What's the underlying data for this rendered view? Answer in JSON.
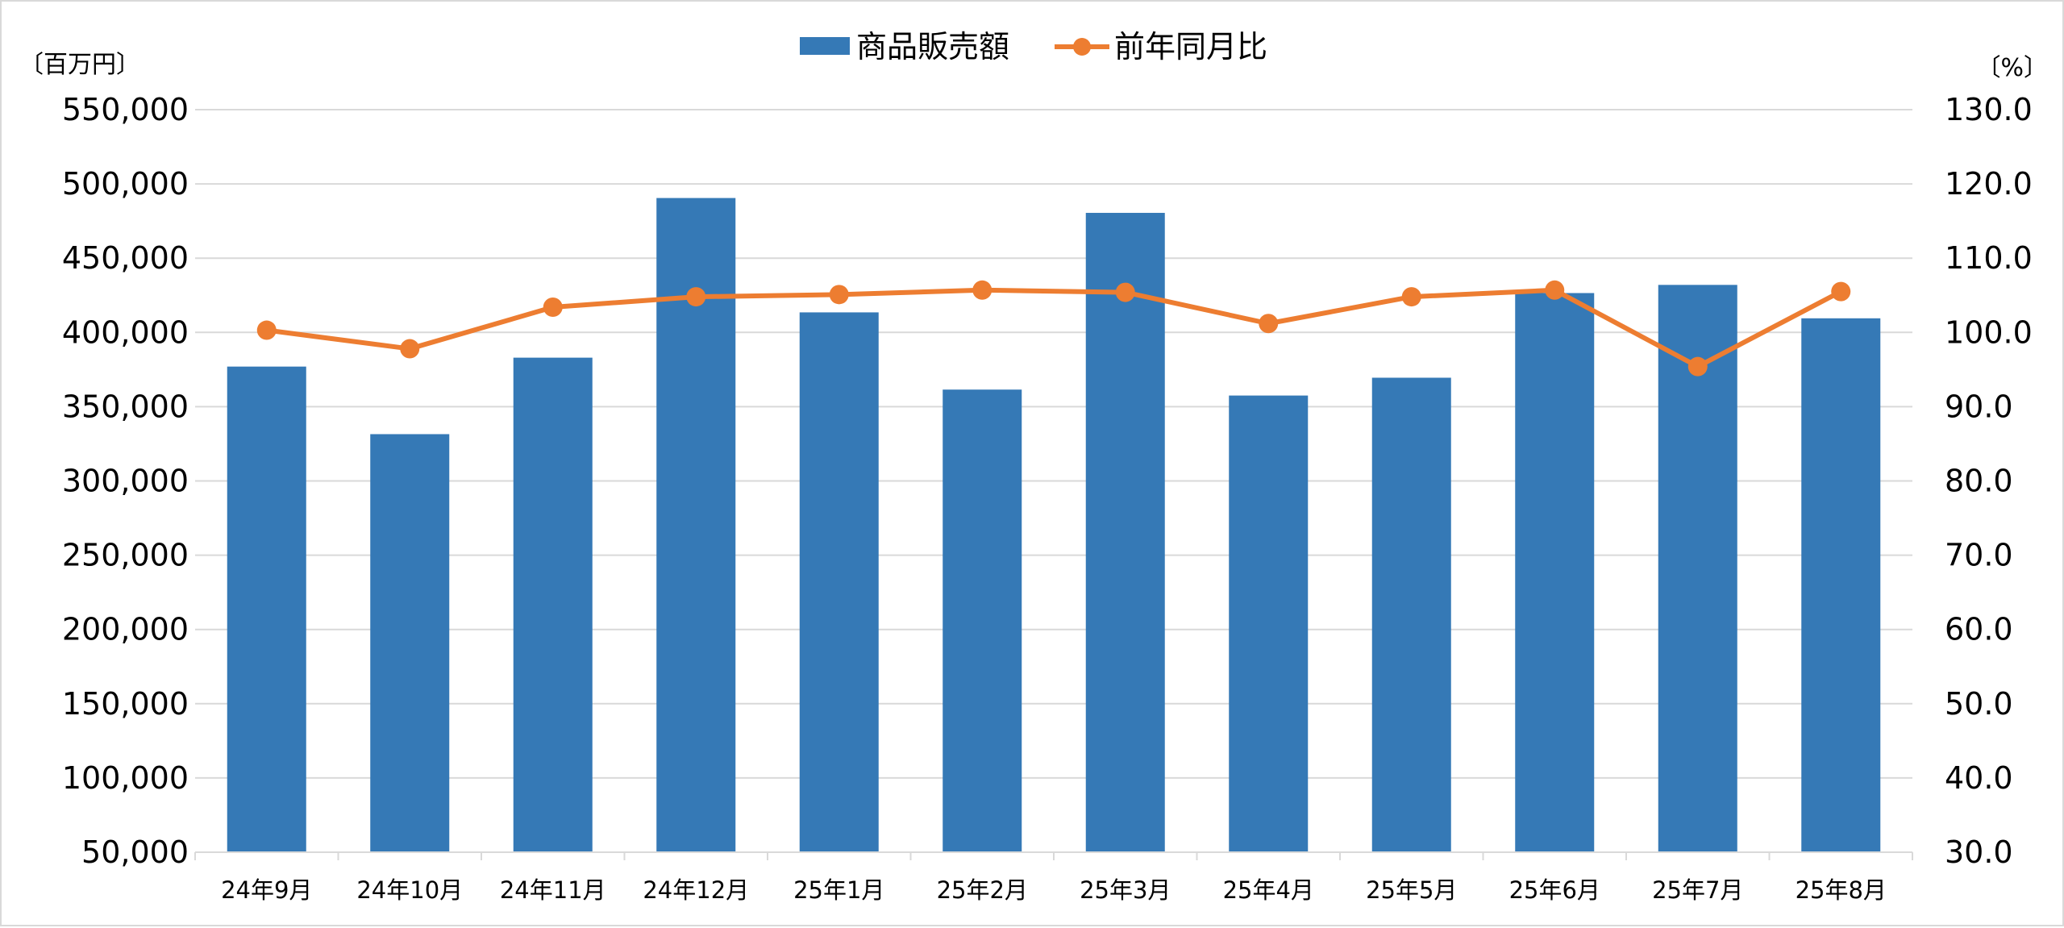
{
  "chart_data": {
    "type": "bar",
    "title": "",
    "categories": [
      "24年9月",
      "24年10月",
      "24年11月",
      "24年12月",
      "25年1月",
      "25年2月",
      "25年3月",
      "25年4月",
      "25年5月",
      "25年6月",
      "25年7月",
      "25年8月"
    ],
    "series": [
      {
        "name": "商品販売額",
        "type": "bar",
        "axis": "left",
        "color": "#3579b6",
        "values": [
          377000,
          331500,
          383000,
          490500,
          413500,
          361500,
          480500,
          357500,
          369500,
          426500,
          432000,
          409500
        ]
      },
      {
        "name": "前年同月比",
        "type": "line",
        "axis": "right",
        "color": "#ed7d31",
        "values": [
          100.3,
          97.8,
          103.4,
          104.8,
          105.1,
          105.7,
          105.4,
          101.2,
          104.8,
          105.7,
          95.4,
          105.5
        ]
      }
    ],
    "y_left": {
      "unit_label": "〔百万円〕",
      "range": [
        50000,
        550000
      ],
      "ticks": [
        "50,000",
        "100,000",
        "150,000",
        "200,000",
        "250,000",
        "300,000",
        "350,000",
        "400,000",
        "450,000",
        "500,000",
        "550,000"
      ]
    },
    "y_right": {
      "unit_label": "〔%〕",
      "range": [
        30.0,
        130.0
      ],
      "ticks": [
        "30.0",
        "40.0",
        "50.0",
        "60.0",
        "70.0",
        "80.0",
        "90.0",
        "100.0",
        "110.0",
        "120.0",
        "130.0"
      ]
    },
    "grid": true,
    "legend_position": "top-center"
  }
}
